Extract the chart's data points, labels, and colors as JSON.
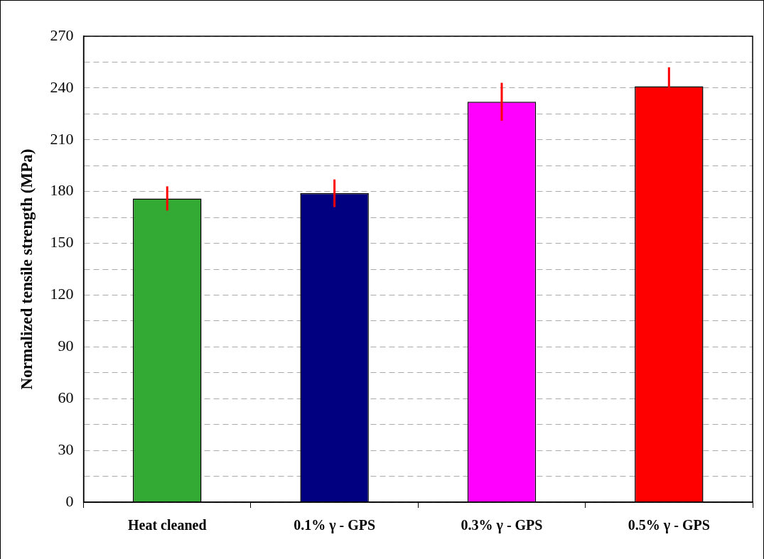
{
  "chart_data": {
    "type": "bar",
    "ylabel": "Normalized tensile strength (MPa)",
    "categories": [
      "Heat cleaned",
      "0.1% γ - GPS",
      "0.3% γ - GPS",
      "0.5% γ - GPS"
    ],
    "values": [
      176,
      179,
      232,
      241
    ],
    "errors": [
      7,
      8,
      11,
      11
    ],
    "colors": [
      "#33aa33",
      "#000080",
      "#ff00ff",
      "#ff0000"
    ],
    "ylim": [
      0,
      270
    ],
    "yticks": [
      0,
      {
        "value": 15,
        "label": null
      },
      30,
      {
        "value": 45,
        "label": null
      },
      60,
      {
        "value": 75,
        "label": null
      },
      90,
      {
        "value": 105,
        "label": null
      },
      120,
      {
        "value": 135,
        "label": null
      },
      150,
      {
        "value": 165,
        "label": null
      },
      180,
      {
        "value": 195,
        "label": null
      },
      210,
      {
        "value": 225,
        "label": null
      },
      240,
      {
        "value": 255,
        "label": null
      },
      270
    ],
    "grid": "y",
    "legend": false
  }
}
